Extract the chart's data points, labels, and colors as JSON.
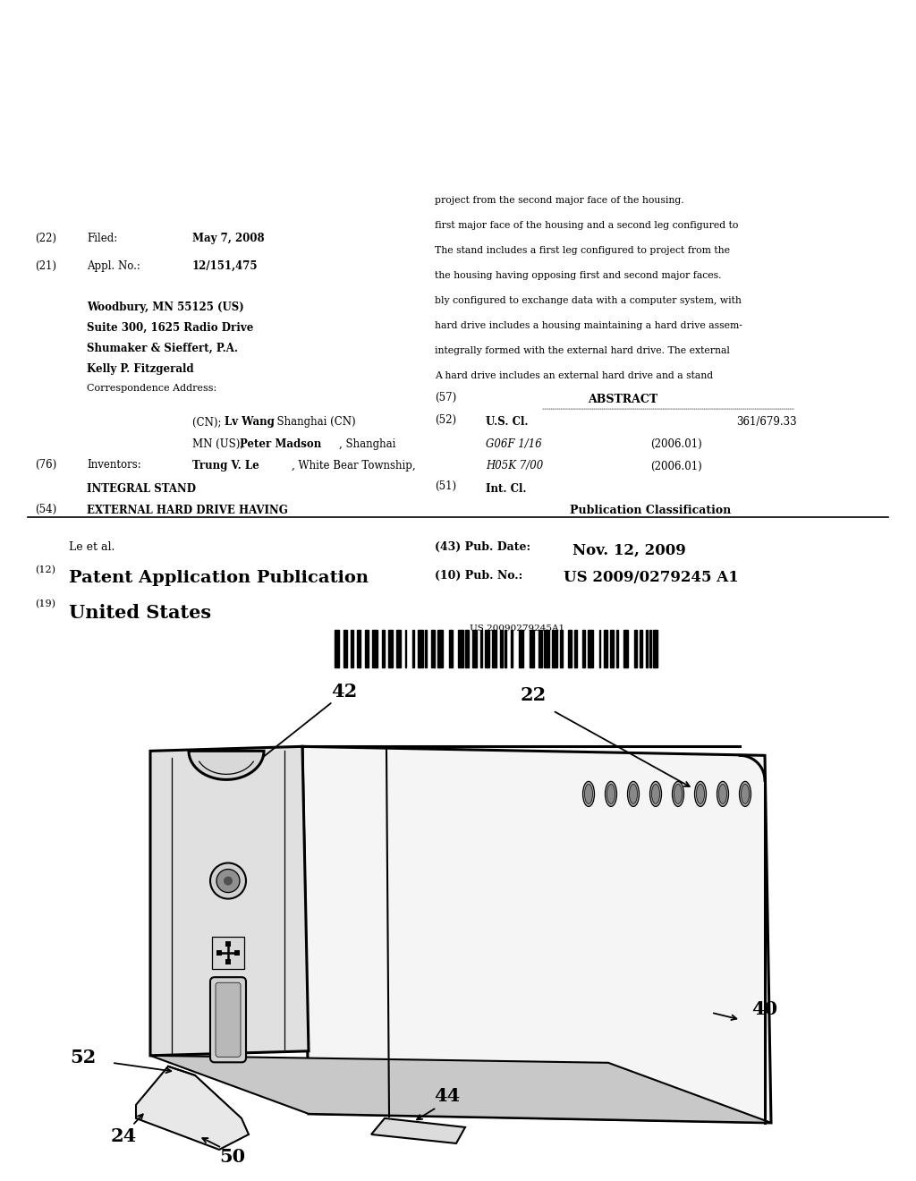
{
  "bg_color": "#ffffff",
  "barcode_text": "US 20090279245A1",
  "header_line1_num": "(19)",
  "header_line1_text": "United States",
  "header_line2_num": "(12)",
  "header_line2_text": "Patent Application Publication",
  "pub_no_label": "(10) Pub. No.:",
  "pub_no_value": "US 2009/0279245 A1",
  "author_label": "Le et al.",
  "pub_date_label": "(43) Pub. Date:",
  "pub_date_value": "Nov. 12, 2009",
  "title_num": "(54)",
  "title_line1": "EXTERNAL HARD DRIVE HAVING",
  "title_line2": "INTEGRAL STAND",
  "inventors_num": "(76)",
  "inventors_label": "Inventors:",
  "corr_address_label": "Correspondence Address:",
  "corr_line1": "Kelly P. Fitzgerald",
  "corr_line2": "Shumaker & Sieffert, P.A.",
  "corr_line3": "Suite 300, 1625 Radio Drive",
  "corr_line4": "Woodbury, MN 55125 (US)",
  "appl_num": "(21)",
  "appl_label": "Appl. No.:",
  "appl_value": "12/151,475",
  "filed_num": "(22)",
  "filed_label": "Filed:",
  "filed_value": "May 7, 2008",
  "pub_class_title": "Publication Classification",
  "int_cl_num": "(51)",
  "int_cl_label": "Int. Cl.",
  "int_cl_code1": "H05K 7/00",
  "int_cl_year1": "(2006.01)",
  "int_cl_code2": "G06F 1/16",
  "int_cl_year2": "(2006.01)",
  "us_cl_num": "(52)",
  "us_cl_label": "U.S. Cl.",
  "us_cl_value": "361/679.33",
  "abstract_num": "(57)",
  "abstract_title": "ABSTRACT",
  "abstract_lines": [
    "A hard drive includes an external hard drive and a stand",
    "integrally formed with the external hard drive. The external",
    "hard drive includes a housing maintaining a hard drive assem-",
    "bly configured to exchange data with a computer system, with",
    "the housing having opposing first and second major faces.",
    "The stand includes a first leg configured to project from the",
    "first major face of the housing and a second leg configured to",
    "project from the second major face of the housing."
  ],
  "inv_bold1": "Trung V. Le",
  "inv_rest1": ", White Bear Township,",
  "inv_rest2a": "MN (US); ",
  "inv_bold2": "Peter Madson",
  "inv_rest2b": ", Shanghai",
  "inv_rest3a": "(CN); ",
  "inv_bold3": "Lv Wang",
  "inv_rest3b": ", Shanghai (CN)"
}
